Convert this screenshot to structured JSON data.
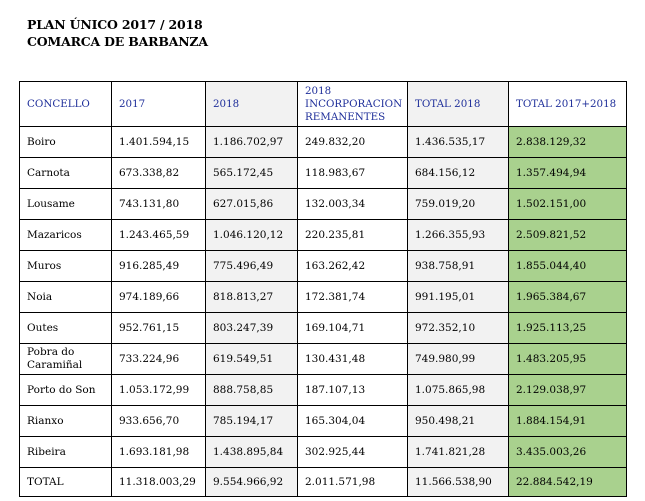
{
  "title": {
    "line1": "PLAN ÚNICO 2017 /  2018",
    "line2": "COMARCA DE BARBANZA"
  },
  "table": {
    "headers": [
      "CONCELLO",
      "2017",
      "2018",
      "2018 INCORPORACION REMANENTES",
      "TOTAL 2018",
      "TOTAL 2017+2018"
    ],
    "rows": [
      [
        "Boiro",
        "1.401.594,15",
        "1.186.702,97",
        "249.832,20",
        "1.436.535,17",
        "2.838.129,32"
      ],
      [
        "Carnota",
        "673.338,82",
        "565.172,45",
        "118.983,67",
        "684.156,12",
        "1.357.494,94"
      ],
      [
        "Lousame",
        "743.131,80",
        "627.015,86",
        "132.003,34",
        "759.019,20",
        "1.502.151,00"
      ],
      [
        "Mazaricos",
        "1.243.465,59",
        "1.046.120,12",
        "220.235,81",
        "1.266.355,93",
        "2.509.821,52"
      ],
      [
        "Muros",
        "916.285,49",
        "775.496,49",
        "163.262,42",
        "938.758,91",
        "1.855.044,40"
      ],
      [
        "Noia",
        "974.189,66",
        "818.813,27",
        "172.381,74",
        "991.195,01",
        "1.965.384,67"
      ],
      [
        "Outes",
        "952.761,15",
        "803.247,39",
        "169.104,71",
        "972.352,10",
        "1.925.113,25"
      ],
      [
        "Pobra do Caramiñal",
        "733.224,96",
        "619.549,51",
        "130.431,48",
        "749.980,99",
        "1.483.205,95"
      ],
      [
        "Porto do Son",
        "1.053.172,99",
        "888.758,85",
        "187.107,13",
        "1.075.865,98",
        "2.129.038,97"
      ],
      [
        "Rianxo",
        "933.656,70",
        "785.194,17",
        "165.304,04",
        "950.498,21",
        "1.884.154,91"
      ],
      [
        "Ribeira",
        "1.693.181,98",
        "1.438.895,84",
        "302.925,44",
        "1.741.821,28",
        "3.435.003,26"
      ],
      [
        "TOTAL",
        "11.318.003,29",
        "9.554.966,92",
        "2.011.571,98",
        "11.566.538,90",
        "22.884.542,19"
      ]
    ]
  },
  "colors": {
    "header_text": "#1f2f9a",
    "shaded_column": "#f2f2f2",
    "total_column": "#a9d18e"
  }
}
